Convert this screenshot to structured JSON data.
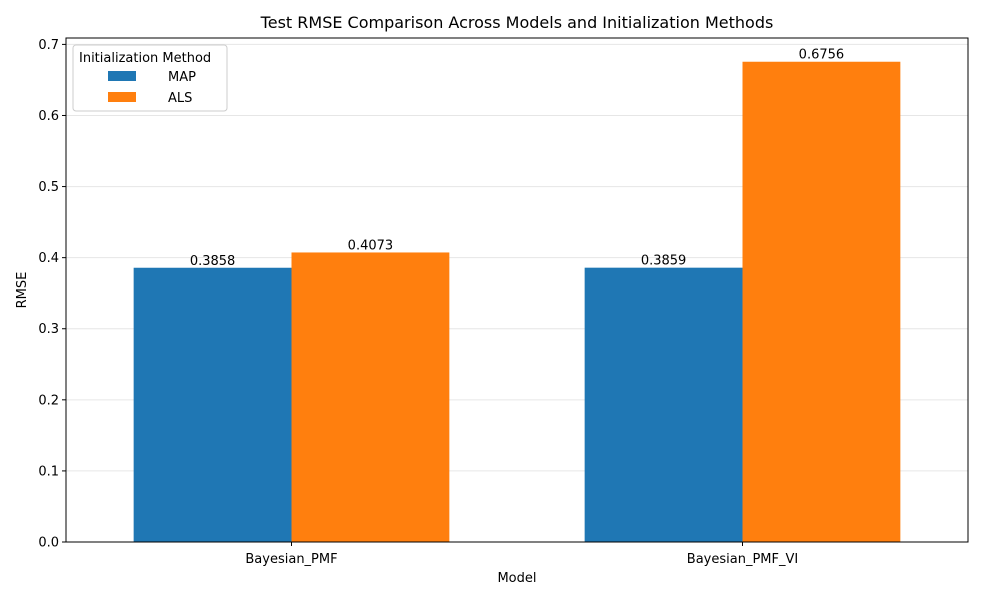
{
  "chart_data": {
    "type": "bar",
    "title": "Test RMSE Comparison Across Models and Initialization Methods",
    "xlabel": "Model",
    "ylabel": "RMSE",
    "categories": [
      "Bayesian_PMF",
      "Bayesian_PMF_VI"
    ],
    "series": [
      {
        "name": "MAP",
        "values": [
          0.3858,
          0.3859
        ],
        "labels": [
          "0.3858",
          "0.3859"
        ],
        "color": "#1f77b4"
      },
      {
        "name": "ALS",
        "values": [
          0.4073,
          0.6756
        ],
        "labels": [
          "0.4073",
          "0.6756"
        ],
        "color": "#ff7f0e"
      }
    ],
    "ylim": [
      0,
      0.709
    ],
    "yticks": [
      0.0,
      0.1,
      0.2,
      0.3,
      0.4,
      0.5,
      0.6,
      0.7
    ],
    "ytick_labels": [
      "0.0",
      "0.1",
      "0.2",
      "0.3",
      "0.4",
      "0.5",
      "0.6",
      "0.7"
    ],
    "grid": "y",
    "legend_title": "Initialization Method",
    "legend_position": "top-left"
  }
}
